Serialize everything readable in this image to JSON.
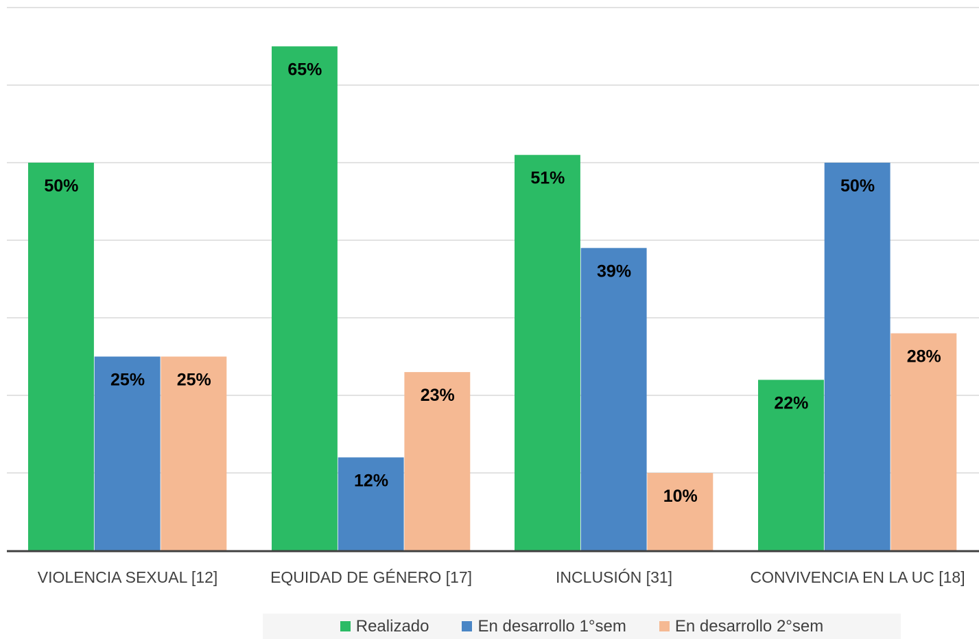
{
  "chart_data": {
    "type": "bar",
    "categories": [
      "VIOLENCIA SEXUAL [12]",
      "EQUIDAD DE GÉNERO [17]",
      "INCLUSIÓN [31]",
      "CONVIVENCIA EN LA UC [18]"
    ],
    "series": [
      {
        "name": "Realizado",
        "color": "#2bbb65",
        "values": [
          50,
          65,
          51,
          22
        ]
      },
      {
        "name": "En desarrollo 1°sem",
        "color": "#4a86c5",
        "values": [
          25,
          12,
          39,
          50
        ]
      },
      {
        "name": "En desarrollo 2°sem",
        "color": "#f5b993",
        "values": [
          25,
          23,
          10,
          28
        ]
      }
    ],
    "data_labels": [
      [
        "50%",
        "25%",
        "25%"
      ],
      [
        "65%",
        "12%",
        "23%"
      ],
      [
        "51%",
        "39%",
        "10%"
      ],
      [
        "22%",
        "50%",
        "28%"
      ]
    ],
    "ylim": [
      0,
      70
    ],
    "grid": true,
    "legend_position": "bottom",
    "title": "",
    "xlabel": "",
    "ylabel": ""
  }
}
